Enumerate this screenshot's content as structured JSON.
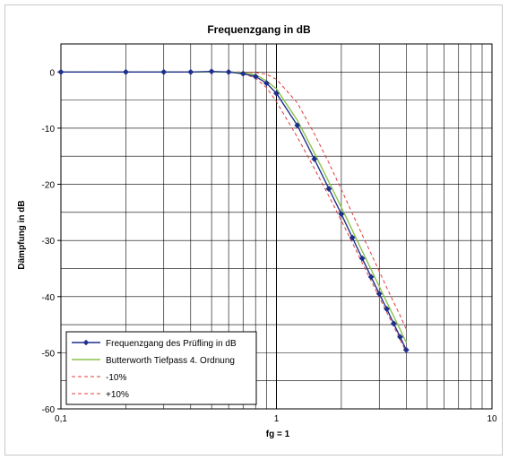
{
  "chart_data": {
    "type": "line",
    "title": "Frequenzgang in dB",
    "xlabel": "fg = 1",
    "ylabel": "Dämpfung in dB",
    "x_scale": "log",
    "xlim": [
      0.1,
      10
    ],
    "ylim": [
      -60,
      5
    ],
    "x_ticks": [
      {
        "value": 0.1,
        "label": "0,1"
      },
      {
        "value": 1,
        "label": "1"
      },
      {
        "value": 10,
        "label": "10"
      }
    ],
    "y_ticks": [
      {
        "value": 0,
        "label": "0"
      },
      {
        "value": -10,
        "label": "-10"
      },
      {
        "value": -20,
        "label": "-20"
      },
      {
        "value": -30,
        "label": "-30"
      },
      {
        "value": -40,
        "label": "-40"
      },
      {
        "value": -50,
        "label": "-50"
      },
      {
        "value": -60,
        "label": "-60"
      }
    ],
    "grid": true,
    "legend_position": "bottom-left",
    "series": [
      {
        "name": "Frequenzgang des Prüfling in dB",
        "color": "#1f2f8c",
        "style": "solid",
        "marker": "diamond",
        "x": [
          0.1,
          0.2,
          0.3,
          0.4,
          0.5,
          0.6,
          0.7,
          0.8,
          0.9,
          1.0,
          1.25,
          1.5,
          1.75,
          2.0,
          2.25,
          2.5,
          2.75,
          3.0,
          3.25,
          3.5,
          3.75,
          4.0
        ],
        "y": [
          0,
          0,
          0,
          0,
          0.1,
          0,
          -0.3,
          -0.8,
          -2.0,
          -3.8,
          -9.5,
          -15.5,
          -20.8,
          -25.3,
          -29.5,
          -33.2,
          -36.5,
          -39.5,
          -42.2,
          -44.8,
          -47.2,
          -49.5
        ]
      },
      {
        "name": "Butterworth Tiefpass 4. Ordnung",
        "color": "#8bc34a",
        "style": "solid",
        "marker": "none",
        "x": [
          0.1,
          0.2,
          0.3,
          0.4,
          0.5,
          0.6,
          0.7,
          0.8,
          0.9,
          1.0,
          1.25,
          1.5,
          1.75,
          2.0,
          2.25,
          2.5,
          2.75,
          3.0,
          3.25,
          3.5,
          3.75,
          4.0
        ],
        "y": [
          0,
          0,
          0,
          0,
          0,
          0,
          -0.1,
          -0.5,
          -1.6,
          -3.0,
          -8.6,
          -14.4,
          -19.6,
          -24.1,
          -28.2,
          -31.9,
          -35.2,
          -38.2,
          -41.0,
          -43.5,
          -45.9,
          -48.2
        ]
      },
      {
        "name": "-10%",
        "color": "#e03c3c",
        "style": "dashed",
        "marker": "none",
        "x": [
          0.1,
          0.2,
          0.3,
          0.4,
          0.5,
          0.6,
          0.7,
          0.8,
          0.9,
          1.0,
          1.25,
          1.5,
          1.75,
          2.0,
          2.25,
          2.5,
          2.75,
          3.0,
          3.25,
          3.5,
          3.75,
          4.0
        ],
        "y": [
          0,
          0,
          0,
          0,
          0,
          0,
          -0.3,
          -1.1,
          -2.8,
          -5.3,
          -11.6,
          -17.2,
          -22.1,
          -26.5,
          -30.4,
          -34.0,
          -37.2,
          -40.1,
          -42.8,
          -45.3,
          -47.7,
          -49.9
        ]
      },
      {
        "name": "+10%",
        "color": "#e03c3c",
        "style": "dashed",
        "marker": "none",
        "x": [
          0.1,
          0.2,
          0.3,
          0.4,
          0.5,
          0.6,
          0.7,
          0.8,
          0.9,
          1.0,
          1.25,
          1.5,
          1.75,
          2.0,
          2.25,
          2.5,
          2.75,
          3.0,
          3.25,
          3.5,
          3.75,
          4.0
        ],
        "y": [
          0,
          0,
          0,
          0,
          0,
          0,
          0,
          -0.1,
          -0.4,
          -1.3,
          -5.5,
          -11.0,
          -16.2,
          -20.9,
          -25.2,
          -29.0,
          -32.4,
          -35.5,
          -38.4,
          -41.0,
          -43.4,
          -45.8
        ]
      }
    ]
  }
}
